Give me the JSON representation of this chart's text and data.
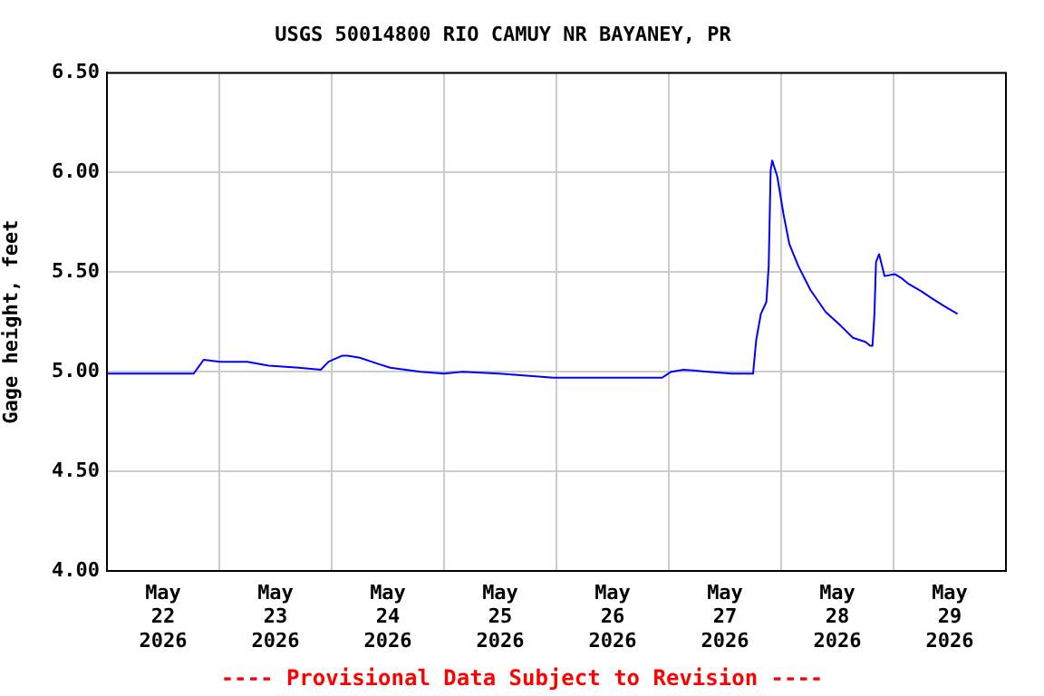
{
  "chart_data": {
    "type": "line",
    "title": "USGS 50014800 RIO CAMUY NR BAYANEY, PR",
    "ylabel": "Gage height, feet",
    "annotations": [
      "---- Provisional Data Subject to Revision ----"
    ],
    "x": [
      "2026-05-22T00:00",
      "2026-05-22T18:30",
      "2026-05-22T20:40",
      "2026-05-23T00:15",
      "2026-05-23T03:00",
      "2026-05-23T06:00",
      "2026-05-23T10:35",
      "2026-05-23T17:00",
      "2026-05-23T21:40",
      "2026-05-23T23:20",
      "2026-05-24T02:10",
      "2026-05-24T03:25",
      "2026-05-24T06:00",
      "2026-05-24T09:50",
      "2026-05-24T12:30",
      "2026-05-24T19:00",
      "2026-05-25T00:00",
      "2026-05-25T04:00",
      "2026-05-25T11:45",
      "2026-05-25T17:35",
      "2026-05-25T23:20",
      "2026-05-26T22:35",
      "2026-05-27T00:30",
      "2026-05-27T03:10",
      "2026-05-27T08:20",
      "2026-05-27T13:30",
      "2026-05-27T18:00",
      "2026-05-27T18:40",
      "2026-05-27T19:40",
      "2026-05-27T20:50",
      "2026-05-27T21:20",
      "2026-05-27T21:45",
      "2026-05-27T22:05",
      "2026-05-27T23:10",
      "2026-05-28T00:30",
      "2026-05-28T01:45",
      "2026-05-28T03:40",
      "2026-05-28T06:15",
      "2026-05-28T09:30",
      "2026-05-28T12:45",
      "2026-05-28T15:20",
      "2026-05-28T18:00",
      "2026-05-28T19:00",
      "2026-05-28T19:30",
      "2026-05-28T19:55",
      "2026-05-28T20:15",
      "2026-05-28T20:55",
      "2026-05-28T22:05",
      "2026-05-29T00:15",
      "2026-05-29T01:40",
      "2026-05-29T03:15",
      "2026-05-29T05:30",
      "2026-05-29T08:05",
      "2026-05-29T10:45",
      "2026-05-29T13:40"
    ],
    "series": [
      {
        "color": "#0000ff",
        "values": [
          4.99,
          4.99,
          5.06,
          5.05,
          5.05,
          5.05,
          5.03,
          5.02,
          5.01,
          5.05,
          5.08,
          5.08,
          5.07,
          5.04,
          5.02,
          5.0,
          4.99,
          5.0,
          4.99,
          4.98,
          4.97,
          4.97,
          5.0,
          5.01,
          5.0,
          4.99,
          4.99,
          5.16,
          5.29,
          5.35,
          5.53,
          6.01,
          6.06,
          5.98,
          5.79,
          5.64,
          5.53,
          5.41,
          5.3,
          5.23,
          5.17,
          5.15,
          5.13,
          5.13,
          5.29,
          5.55,
          5.59,
          5.48,
          5.49,
          5.47,
          5.44,
          5.41,
          5.37,
          5.33,
          5.29
        ]
      }
    ],
    "xlim": [
      "2026-05-22",
      "2026-05-30"
    ],
    "xticks": [
      {
        "value": "2026-05-22T12:00",
        "label": "May\n22\n2026"
      },
      {
        "value": "2026-05-23",
        "label": null
      },
      {
        "value": "2026-05-23T12:00",
        "label": "May\n23\n2026"
      },
      {
        "value": "2026-05-24",
        "label": null
      },
      {
        "value": "2026-05-24T12:00",
        "label": "May\n24\n2026"
      },
      {
        "value": "2026-05-25",
        "label": null
      },
      {
        "value": "2026-05-25T12:00",
        "label": "May\n25\n2026"
      },
      {
        "value": "2026-05-26",
        "label": null
      },
      {
        "value": "2026-05-26T12:00",
        "label": "May\n26\n2026"
      },
      {
        "value": "2026-05-27",
        "label": null
      },
      {
        "value": "2026-05-27T12:00",
        "label": "May\n27\n2026"
      },
      {
        "value": "2026-05-28",
        "label": null
      },
      {
        "value": "2026-05-28T12:00",
        "label": "May\n28\n2026"
      },
      {
        "value": "2026-05-29",
        "label": null
      },
      {
        "value": "2026-05-29T12:00",
        "label": "May\n29\n2026"
      }
    ],
    "ylim": [
      4.0,
      6.5
    ],
    "yticks": [
      {
        "value": 4.0,
        "label": "4.00"
      },
      {
        "value": 4.5,
        "label": "4.50"
      },
      {
        "value": 5.0,
        "label": "5.00"
      },
      {
        "value": 5.5,
        "label": "5.50"
      },
      {
        "value": 6.0,
        "label": "6.00"
      },
      {
        "value": 6.5,
        "label": "6.50"
      }
    ],
    "grid": true,
    "legend": false,
    "marker": "none",
    "line_style": "solid"
  }
}
